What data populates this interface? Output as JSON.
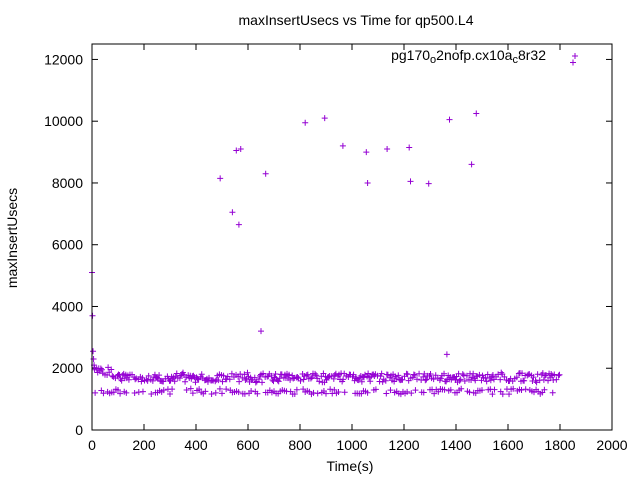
{
  "chart_data": {
    "type": "scatter",
    "title": "maxInsertUsecs vs Time for qp500.L4",
    "xlabel": "Time(s)",
    "ylabel": "maxInsertUsecs",
    "xlim": [
      0,
      2000
    ],
    "ylim": [
      0,
      12500
    ],
    "x_ticks": [
      "0",
      "200",
      "400",
      "600",
      "800",
      "1000",
      "1200",
      "1400",
      "1600",
      "1800",
      "2000"
    ],
    "y_ticks": [
      "0",
      "2000",
      "4000",
      "6000",
      "8000",
      "10000",
      "12000"
    ],
    "grid": false,
    "legend_position": "top-right",
    "series": [
      {
        "name": "pg170_o2nofp.cx10a_c8r32",
        "name_parts": [
          "pg170",
          "o",
          "2nofp.cx10a",
          "c",
          "8r32"
        ],
        "color": "#9400D3",
        "marker": "plus",
        "points": [
          [
            0,
            5100
          ],
          [
            2,
            3700
          ],
          [
            4,
            2550
          ],
          [
            6,
            2300
          ],
          [
            8,
            2100
          ],
          [
            10,
            1950
          ],
          [
            493,
            8150
          ],
          [
            540,
            7050
          ],
          [
            555,
            9050
          ],
          [
            565,
            6650
          ],
          [
            572,
            9100
          ],
          [
            650,
            3200
          ],
          [
            668,
            8300
          ],
          [
            820,
            9950
          ],
          [
            895,
            10100
          ],
          [
            965,
            9200
          ],
          [
            1055,
            9000
          ],
          [
            1060,
            8000
          ],
          [
            1135,
            9100
          ],
          [
            1220,
            9150
          ],
          [
            1225,
            8050
          ],
          [
            1295,
            7980
          ],
          [
            1365,
            2450
          ],
          [
            1375,
            10050
          ],
          [
            1460,
            8600
          ],
          [
            1478,
            10250
          ],
          [
            1850,
            11900
          ]
        ],
        "baseline": {
          "description": "dense band of points sampled roughly every 10 s",
          "x_range": [
            10,
            1800
          ],
          "upper_band_level": 1700,
          "lower_band_level": 1250
        }
      }
    ]
  }
}
